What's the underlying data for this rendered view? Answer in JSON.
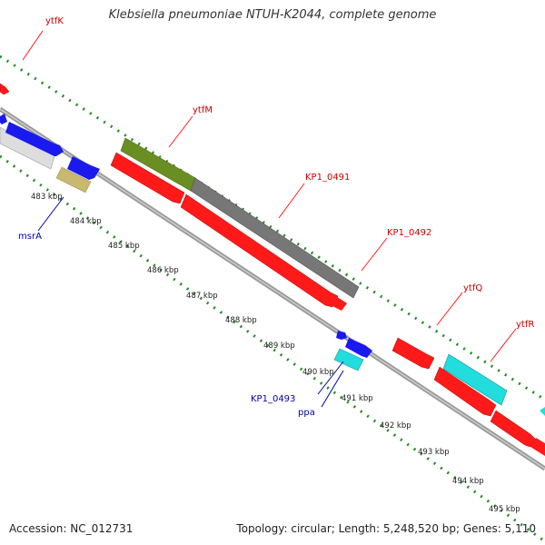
{
  "title": "Klebsiella pneumoniae NTUH-K2044, complete genome",
  "footer": {
    "accession": "Accession: NC_012731",
    "topology": "Topology: circular; Length: 5,248,520 bp; Genes: 5,110"
  },
  "colors": {
    "red": "#ff1a1a",
    "blue": "#1a1aee",
    "cyan": "#22dddd",
    "olive": "#6b8e23",
    "gray": "#777777",
    "light_gray": "#dddddd",
    "khaki": "#c8b870",
    "backbone": "#888888",
    "tick_green": "#228b22",
    "label_red": "#cc0000",
    "label_blue": "#0000aa"
  },
  "scale_labels": [
    "483 kbp",
    "484 kbp",
    "485 kbp",
    "486 kbp",
    "487 kbp",
    "488 kbp",
    "489 kbp",
    "490 kbp",
    "491 kbp",
    "492 kbp",
    "493 kbp",
    "494 kbp",
    "495 kbp"
  ],
  "gene_labels": {
    "ytfK": "ytfK",
    "ytfM": "ytfM",
    "KP1_0491": "KP1_0491",
    "KP1_0492": "KP1_0492",
    "ytfQ": "ytfQ",
    "ytfR": "ytfR",
    "msrA": "msrA",
    "KP1_0493": "KP1_0493",
    "ppa": "ppa"
  }
}
